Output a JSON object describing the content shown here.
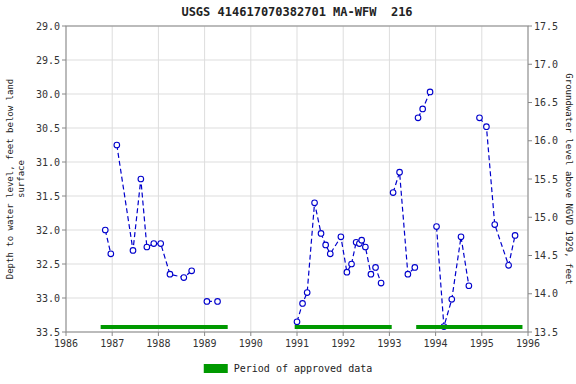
{
  "chart_data": {
    "type": "line",
    "title": "USGS 414617070382701 MA-WFW  216",
    "ylabel": "Depth to water level, feet below land\nsurface",
    "y2label": "Groundwater level above NGVD 1929, feet",
    "xlim": [
      1986,
      1996
    ],
    "ylim": [
      33.5,
      29.0
    ],
    "y2lim": [
      13.5,
      17.5
    ],
    "xticks": [
      1986,
      1987,
      1988,
      1989,
      1990,
      1991,
      1992,
      1993,
      1994,
      1995,
      1996
    ],
    "yticks": [
      {
        "value": 29.0,
        "label": "29.0"
      },
      29.5,
      {
        "value": 30.0,
        "label": "30.0"
      },
      30.5,
      {
        "value": 31.0,
        "label": "31.0"
      },
      31.5,
      {
        "value": 32.0,
        "label": "32.0"
      },
      32.5,
      {
        "value": 33.0,
        "label": "33.0"
      },
      33.5
    ],
    "y2ticks": [
      13.5,
      {
        "value": 14.0,
        "label": "14.0"
      },
      14.5,
      {
        "value": 15.0,
        "label": "15.0"
      },
      15.5,
      {
        "value": 16.0,
        "label": "16.0"
      },
      16.5,
      {
        "value": 17.0,
        "label": "17.0"
      },
      17.5
    ],
    "grid": true,
    "legend": "bottom",
    "series": [
      {
        "type": "line",
        "color": "#0000cc",
        "marker": "circle",
        "line_style": "dashed",
        "x": [
          1986.85,
          1986.97,
          null,
          1987.1,
          1987.45,
          1987.62,
          1987.75,
          1987.9,
          1988.05,
          1988.25,
          1988.55,
          1988.72,
          null,
          1989.05,
          1989.28,
          null,
          1991.0,
          1991.12,
          1991.22,
          1991.38,
          1991.52,
          1991.62,
          1991.72,
          1991.95,
          1992.08,
          1992.18,
          1992.28,
          1992.35,
          1992.4,
          1992.48,
          1992.6,
          1992.7,
          1992.82,
          null,
          1993.08,
          1993.22,
          1993.4,
          1993.55,
          null,
          1993.62,
          1993.72,
          1993.88,
          null,
          1994.02,
          1994.18,
          1994.35,
          1994.55,
          1994.72,
          null,
          1994.95,
          1995.1,
          1995.28,
          1995.58,
          1995.72
        ],
        "values": [
          32.0,
          32.35,
          null,
          30.75,
          32.3,
          31.25,
          32.25,
          32.2,
          32.2,
          32.65,
          32.7,
          32.6,
          null,
          33.05,
          33.05,
          null,
          33.35,
          33.08,
          32.92,
          31.6,
          32.05,
          32.22,
          32.35,
          32.1,
          32.62,
          32.5,
          32.18,
          32.2,
          32.15,
          32.25,
          32.65,
          32.55,
          32.78,
          null,
          31.45,
          31.15,
          32.65,
          32.55,
          null,
          30.35,
          30.22,
          29.97,
          null,
          31.95,
          33.42,
          33.02,
          32.1,
          32.82,
          null,
          30.35,
          30.48,
          31.92,
          32.52,
          32.08
        ]
      },
      {
        "type": "period",
        "name": "Period of approved data",
        "color": "#009900",
        "starts": [
          1986.75,
          1990.95,
          1993.58
        ],
        "ends": [
          1989.5,
          1993.05,
          1995.88
        ]
      }
    ]
  }
}
